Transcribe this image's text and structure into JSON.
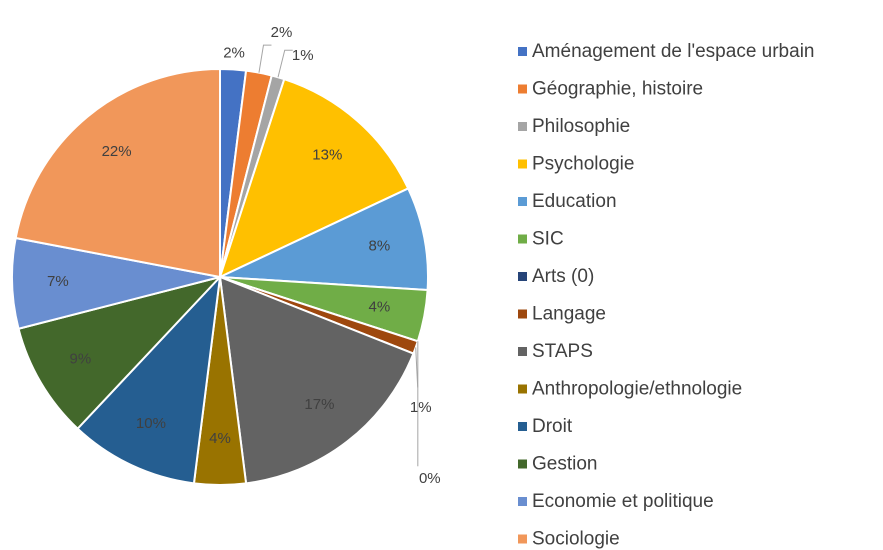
{
  "chart_data": {
    "type": "pie",
    "categories": [
      "Aménagement de l'espace urbain",
      "Géographie, histoire",
      "Philosophie",
      "Psychologie",
      "Education",
      "SIC",
      "Arts (0)",
      "Langage",
      "STAPS",
      "Anthropologie/ethnologie",
      "Droit",
      "Gestion",
      "Economie et politique",
      "Sociologie"
    ],
    "values": [
      2,
      2,
      1,
      13,
      8,
      4,
      0,
      1,
      17,
      4,
      10,
      9,
      7,
      22
    ],
    "value_labels": [
      "2%",
      "2%",
      "1%",
      "13%",
      "8%",
      "4%",
      "0%",
      "1%",
      "17%",
      "4%",
      "10%",
      "9%",
      "7%",
      "22%"
    ],
    "colors": [
      "#4472c4",
      "#ed7d31",
      "#a5a5a5",
      "#ffc000",
      "#5b9bd5",
      "#70ad47",
      "#264478",
      "#9e480e",
      "#636363",
      "#997300",
      "#255e91",
      "#43682b",
      "#698ed0",
      "#f1975a"
    ],
    "legend": "right"
  }
}
